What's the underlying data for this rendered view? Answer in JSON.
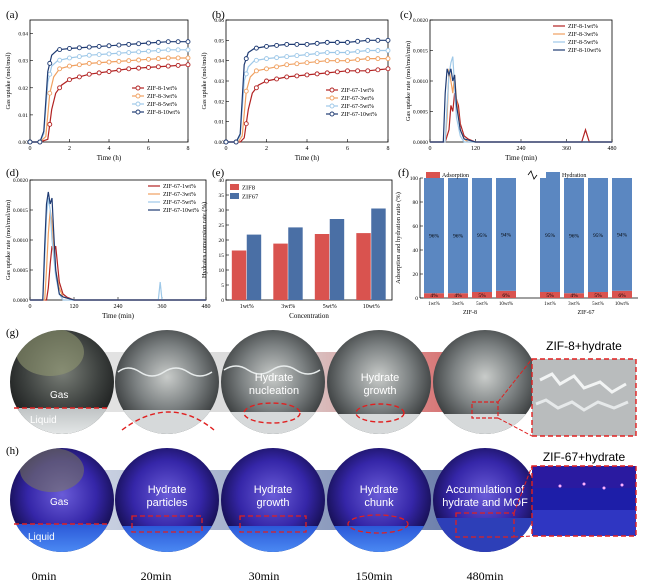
{
  "panels": {
    "a": {
      "label": "(a)",
      "xlabel": "Time (h)",
      "ylabel": "Gas uptake (mol/mol)",
      "xticks": [
        "0",
        "2",
        "4",
        "6",
        "8"
      ],
      "yticks": [
        "0.00",
        "0.01",
        "0.02",
        "0.03",
        "0.04"
      ]
    },
    "b": {
      "label": "(b)",
      "xlabel": "Time (h)",
      "ylabel": "Gas uptake (mol/mol)",
      "xticks": [
        "0",
        "2",
        "4",
        "6",
        "8"
      ],
      "yticks": [
        "0.00",
        "0.01",
        "0.02",
        "0.03",
        "0.04",
        "0.05",
        "0.06"
      ]
    },
    "c": {
      "label": "(c)",
      "xlabel": "Time (min)",
      "ylabel": "Gas uptake rate (mol/mol/min)",
      "xticks": [
        "0",
        "120",
        "240",
        "360",
        "480"
      ],
      "yticks": [
        "0.0000",
        "0.0005",
        "0.0010",
        "0.0015",
        "0.0020"
      ]
    },
    "d": {
      "label": "(d)",
      "xlabel": "Time (min)",
      "ylabel": "Gas uptake rate (mol/mol/min)",
      "xticks": [
        "0",
        "120",
        "240",
        "360",
        "480"
      ],
      "yticks": [
        "0.0000",
        "0.0005",
        "0.0010",
        "0.0015",
        "0.0020"
      ]
    },
    "e": {
      "label": "(e)",
      "xlabel": "Concentration",
      "ylabel": "Hydrates conversion rate (%)",
      "xticks": [
        "1wt%",
        "3wt%",
        "5wt%",
        "10wt%"
      ],
      "yticks": [
        "0",
        "5",
        "10",
        "15",
        "20",
        "25",
        "30",
        "35",
        "40"
      ]
    },
    "f": {
      "label": "(f)",
      "ylabel": "Adsorption and hydration ratio (%)",
      "yticks": [
        "0",
        "20",
        "40",
        "60",
        "80",
        "100"
      ],
      "cats": [
        "1wt%",
        "3wt%",
        "5wt%",
        "10wt%",
        "1wt%",
        "3wt%",
        "5wt%",
        "10wt%"
      ],
      "groups": [
        "ZIF-8",
        "ZIF-67"
      ]
    }
  },
  "photos": {
    "g_label": "(g)",
    "h_label": "(h)",
    "g_texts": [
      "Gas",
      "Liquid",
      "Hydrate",
      "nucleation",
      "Hydrate",
      "growth"
    ],
    "g_zoom": "ZIF-8+hydrate",
    "h_texts": [
      "Gas",
      "Liquid",
      "Hydrate",
      "particles",
      "Hydrate",
      "growth",
      "Hydrate",
      "chunk",
      "Accumulation of",
      "hydrate and MOF"
    ],
    "h_zoom": "ZIF-67+hydrate",
    "times": [
      "0min",
      "20min",
      "30min",
      "150min",
      "480min"
    ]
  },
  "chart_data": [
    {
      "type": "line",
      "panel": "a",
      "xlabel": "Time (h)",
      "ylabel": "Gas uptake (mol/mol)",
      "xlim": [
        0,
        8
      ],
      "ylim": [
        0,
        0.045
      ],
      "series": [
        {
          "name": "ZIF-8-1wt%",
          "color": "#b22222",
          "x": [
            0,
            0.5,
            0.9,
            1.1,
            1.3,
            1.6,
            2,
            3,
            4,
            5,
            6,
            7,
            8
          ],
          "y": [
            0,
            0,
            0.001,
            0.012,
            0.018,
            0.021,
            0.023,
            0.025,
            0.026,
            0.027,
            0.0275,
            0.028,
            0.0285
          ]
        },
        {
          "name": "ZIF-8-3wt%",
          "color": "#f0a060",
          "x": [
            0,
            0.5,
            0.8,
            1.0,
            1.2,
            1.5,
            2,
            3,
            4,
            5,
            6,
            7,
            8
          ],
          "y": [
            0,
            0,
            0.002,
            0.018,
            0.024,
            0.027,
            0.028,
            0.029,
            0.0295,
            0.03,
            0.0305,
            0.031,
            0.031
          ]
        },
        {
          "name": "ZIF-8-5wt%",
          "color": "#9ec8e8",
          "x": [
            0,
            0.5,
            0.7,
            0.9,
            1.1,
            1.4,
            2,
            3,
            4,
            5,
            6,
            7,
            8
          ],
          "y": [
            0,
            0,
            0.003,
            0.022,
            0.028,
            0.03,
            0.031,
            0.032,
            0.0325,
            0.033,
            0.0335,
            0.034,
            0.034
          ]
        },
        {
          "name": "ZIF-8-10wt%",
          "color": "#1f3b73",
          "x": [
            0,
            0.5,
            0.7,
            0.9,
            1.1,
            1.4,
            2,
            3,
            4,
            5,
            6,
            7,
            8
          ],
          "y": [
            0,
            0,
            0.004,
            0.026,
            0.032,
            0.034,
            0.0345,
            0.035,
            0.0355,
            0.036,
            0.0365,
            0.037,
            0.037
          ]
        }
      ]
    },
    {
      "type": "line",
      "panel": "b",
      "xlabel": "Time (h)",
      "ylabel": "Gas uptake (mol/mol)",
      "xlim": [
        0,
        8
      ],
      "ylim": [
        0,
        0.06
      ],
      "series": [
        {
          "name": "ZIF-67-1wt%",
          "color": "#b22222",
          "x": [
            0,
            0.7,
            0.9,
            1.1,
            1.3,
            1.6,
            2,
            3,
            4,
            5,
            6,
            7,
            8
          ],
          "y": [
            0,
            0,
            0.002,
            0.016,
            0.024,
            0.028,
            0.03,
            0.032,
            0.033,
            0.034,
            0.035,
            0.035,
            0.036
          ]
        },
        {
          "name": "ZIF-67-3wt%",
          "color": "#f0a060",
          "x": [
            0,
            0.6,
            0.8,
            1.0,
            1.2,
            1.5,
            2,
            3,
            4,
            5,
            6,
            7,
            8
          ],
          "y": [
            0,
            0,
            0.003,
            0.025,
            0.032,
            0.035,
            0.036,
            0.038,
            0.039,
            0.04,
            0.04,
            0.041,
            0.041
          ]
        },
        {
          "name": "ZIF-67-5wt%",
          "color": "#9ec8e8",
          "x": [
            0,
            0.5,
            0.7,
            0.9,
            1.1,
            1.4,
            2,
            3,
            4,
            5,
            6,
            7,
            8
          ],
          "y": [
            0,
            0,
            0.003,
            0.03,
            0.037,
            0.04,
            0.041,
            0.042,
            0.043,
            0.044,
            0.044,
            0.045,
            0.045
          ]
        },
        {
          "name": "ZIF-67-10wt%",
          "color": "#1f3b73",
          "x": [
            0,
            0.5,
            0.7,
            0.9,
            1.1,
            1.4,
            2,
            3,
            4,
            5,
            6,
            7,
            8
          ],
          "y": [
            0,
            0,
            0.004,
            0.038,
            0.044,
            0.046,
            0.047,
            0.048,
            0.048,
            0.049,
            0.049,
            0.05,
            0.05
          ]
        }
      ]
    },
    {
      "type": "line",
      "panel": "c",
      "xlabel": "Time (min)",
      "ylabel": "Gas uptake rate (mol/mol/min)",
      "xlim": [
        0,
        480
      ],
      "ylim": [
        0,
        0.002
      ],
      "series": [
        {
          "name": "ZIF-8-1wt%",
          "color": "#b22222",
          "x": [
            0,
            40,
            50,
            55,
            60,
            65,
            70,
            75,
            80,
            90,
            100,
            120,
            240,
            400,
            410,
            420,
            480
          ],
          "y": [
            0,
            0,
            0.0002,
            0.0006,
            0.0005,
            0.0008,
            0.0007,
            0.0006,
            0.0003,
            0.0001,
            5e-05,
            0,
            0,
            0,
            0.0002,
            0,
            0
          ]
        },
        {
          "name": "ZIF-8-3wt%",
          "color": "#f0a060",
          "x": [
            0,
            40,
            45,
            50,
            55,
            60,
            65,
            70,
            80,
            90,
            100,
            120,
            480
          ],
          "y": [
            0,
            0,
            0.0004,
            0.0012,
            0.001,
            0.0008,
            0.0011,
            0.0007,
            0.0002,
            5e-05,
            0,
            0,
            0
          ]
        },
        {
          "name": "ZIF-8-5wt%",
          "color": "#9ec8e8",
          "x": [
            0,
            40,
            45,
            50,
            55,
            60,
            65,
            70,
            80,
            90,
            120,
            480
          ],
          "y": [
            0,
            0,
            0.0006,
            0.0011,
            0.0013,
            0.0014,
            0.0009,
            0.0004,
            0.0001,
            0,
            0,
            0
          ]
        },
        {
          "name": "ZIF-8-10wt%",
          "color": "#1f3b73",
          "x": [
            0,
            35,
            40,
            45,
            50,
            55,
            60,
            65,
            70,
            80,
            90,
            120,
            480
          ],
          "y": [
            0,
            0,
            0.0008,
            0.0012,
            0.0011,
            0.0012,
            0.001,
            0.0011,
            0.0006,
            0.0002,
            5e-05,
            0,
            0
          ]
        }
      ]
    },
    {
      "type": "line",
      "panel": "d",
      "xlabel": "Time (min)",
      "ylabel": "Gas uptake rate (mol/mol/min)",
      "xlim": [
        0,
        480
      ],
      "ylim": [
        0,
        0.002
      ],
      "series": [
        {
          "name": "ZIF-67-1wt%",
          "color": "#b22222",
          "x": [
            0,
            45,
            50,
            55,
            60,
            65,
            70,
            75,
            80,
            90,
            100,
            120,
            480
          ],
          "y": [
            0,
            0,
            0.0002,
            0.0006,
            0.0009,
            0.0008,
            0.0009,
            0.0006,
            0.0003,
            0.0001,
            5e-05,
            0,
            0
          ]
        },
        {
          "name": "ZIF-67-3wt%",
          "color": "#f0a060",
          "x": [
            0,
            40,
            45,
            50,
            55,
            60,
            65,
            70,
            80,
            90,
            120,
            480
          ],
          "y": [
            0,
            0,
            0.0005,
            0.0011,
            0.0015,
            0.0013,
            0.0009,
            0.0005,
            0.0002,
            5e-05,
            0,
            0
          ]
        },
        {
          "name": "ZIF-67-5wt%",
          "color": "#9ec8e8",
          "x": [
            0,
            35,
            40,
            45,
            50,
            55,
            60,
            70,
            80,
            90,
            120,
            350,
            355,
            360,
            480
          ],
          "y": [
            0,
            0,
            0.0007,
            0.0014,
            0.0017,
            0.0015,
            0.001,
            0.0004,
            0.0001,
            0,
            0,
            0,
            0.0003,
            0,
            0
          ]
        },
        {
          "name": "ZIF-67-10wt%",
          "color": "#1f3b73",
          "x": [
            0,
            35,
            40,
            45,
            50,
            55,
            60,
            65,
            70,
            80,
            90,
            120,
            480
          ],
          "y": [
            0,
            0,
            0.0009,
            0.0016,
            0.0018,
            0.0016,
            0.0017,
            0.0011,
            0.0005,
            0.0001,
            5e-05,
            0,
            0
          ]
        }
      ]
    },
    {
      "type": "bar",
      "panel": "e",
      "categories": [
        "1wt%",
        "3wt%",
        "5wt%",
        "10wt%"
      ],
      "xlabel": "Concentration",
      "ylabel": "Hydrates conversion rate (%)",
      "ylim": [
        0,
        40
      ],
      "series": [
        {
          "name": "ZIF8",
          "color": "#d9534f",
          "values": [
            16.5,
            18.8,
            22.0,
            22.3
          ]
        },
        {
          "name": "ZIF67",
          "color": "#4a6fa5",
          "values": [
            21.8,
            24.2,
            27.0,
            30.5
          ]
        }
      ]
    },
    {
      "type": "bar",
      "panel": "f",
      "categories": [
        "1wt%",
        "3wt%",
        "5wt%",
        "10wt%",
        "1wt%",
        "3wt%",
        "5wt%",
        "10wt%"
      ],
      "groups": [
        "ZIF-8",
        "ZIF-67"
      ],
      "ylabel": "Adsorption and hydration ratio (%)",
      "ylim": [
        0,
        100
      ],
      "series": [
        {
          "name": "Adsorption",
          "color": "#d9534f",
          "values": [
            4,
            4,
            5,
            6,
            5,
            4,
            5,
            6
          ],
          "labels": [
            "4%",
            "4%",
            "5%",
            "6%",
            "5%",
            "4%",
            "5%",
            "6%"
          ]
        },
        {
          "name": "Hydration",
          "color": "#5b87c1",
          "values": [
            96,
            96,
            95,
            94,
            95,
            96,
            95,
            94
          ],
          "labels": [
            "96%",
            "96%",
            "95%",
            "94%",
            "95%",
            "96%",
            "95%",
            "94%"
          ]
        }
      ]
    }
  ]
}
